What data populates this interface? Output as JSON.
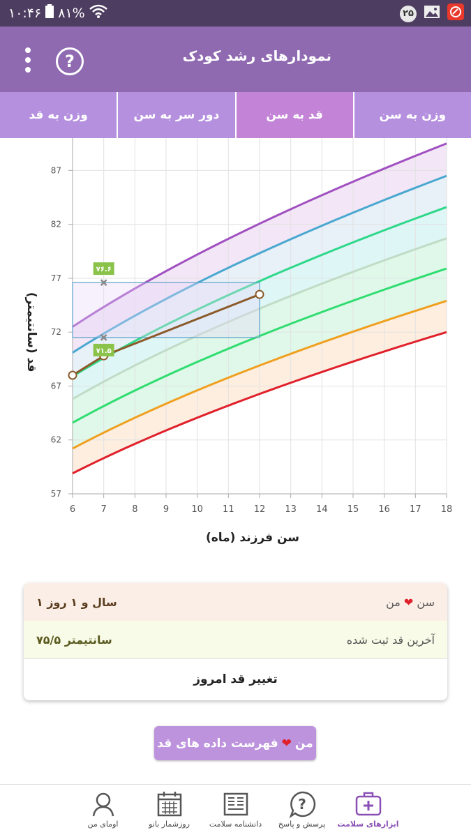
{
  "status_bar": {
    "time": "۱۰:۴۶",
    "battery": "۸۱%",
    "notif_count": "۲۵"
  },
  "app": {
    "title": "نمودارهای رشد کودک"
  },
  "tabs": [
    {
      "label": "وزن به سن",
      "active": false
    },
    {
      "label": "قد به سن",
      "active": true
    },
    {
      "label": "دور سر به سن",
      "active": false
    },
    {
      "label": "وزن به قد",
      "active": false
    }
  ],
  "chart_data": {
    "type": "line",
    "xlabel": "سن فرزند (ماه)",
    "ylabel": "قد (سانتیمتر)",
    "xlim": [
      6,
      18
    ],
    "ylim": [
      57,
      90
    ],
    "x_ticks": [
      "6",
      "7",
      "8",
      "9",
      "10",
      "11",
      "12",
      "13",
      "14",
      "15",
      "16",
      "17",
      "18"
    ],
    "y_ticks": [
      "57",
      "62",
      "67",
      "72",
      "77",
      "82",
      "87"
    ],
    "percentile_x": [
      6,
      18
    ],
    "percentiles": [
      {
        "color": "#e0202a",
        "fill": "#fde0e0",
        "values": [
          58.9,
          72.0
        ]
      },
      {
        "color": "#f0a020",
        "fill": "#fdeee0",
        "values": [
          61.2,
          74.9
        ]
      },
      {
        "color": "#30dd70",
        "fill": "#dff8ea",
        "values": [
          63.6,
          77.9
        ]
      },
      {
        "color": "#c0dcc6",
        "fill": "#dff8ea",
        "values": [
          65.8,
          80.7
        ]
      },
      {
        "color": "#2fd88a",
        "fill": "#dff6f6",
        "values": [
          67.9,
          83.6
        ]
      },
      {
        "color": "#4aa8d0",
        "fill": "#e8f0f8",
        "values": [
          70.1,
          86.5
        ]
      },
      {
        "color": "#a050c0",
        "fill": "#f3e6f6",
        "values": [
          72.5,
          89.5
        ]
      }
    ],
    "child_series": {
      "color": "#8b5a2b",
      "points": [
        {
          "x": 6,
          "y": 68.0
        },
        {
          "x": 7,
          "y": 69.8
        },
        {
          "x": 12,
          "y": 75.5
        }
      ]
    },
    "range_box": {
      "x0": 6,
      "x1": 12,
      "y0": 71.5,
      "y1": 76.6
    },
    "markers": [
      {
        "x": 7,
        "y": 76.6,
        "label": "۷۶.۶"
      },
      {
        "x": 7,
        "y": 71.5,
        "label": "۷۱.۵"
      }
    ]
  },
  "card": {
    "age_label": "سن",
    "age_label_suffix": "من",
    "age_value": "۱ سال و ۱ روز",
    "last_height_label": "آخرین قد ثبت شده",
    "last_height_value": "۷۵/۵ سانتیمتر",
    "change_label": "تغییر قد امروز"
  },
  "list_button": {
    "label_prefix": "فهرست داده های قد",
    "label_suffix": "من"
  },
  "bottom_nav": [
    {
      "label": "ابزارهای سلامت",
      "icon": "medical-kit-icon",
      "active": true
    },
    {
      "label": "پرسش و پاسخ",
      "icon": "question-bubble-icon",
      "active": false
    },
    {
      "label": "دانشنامه سلامت",
      "icon": "encyclopedia-icon",
      "active": false
    },
    {
      "label": "روزشمار بانو",
      "icon": "calendar-icon",
      "active": false
    },
    {
      "label": "اومای من",
      "icon": "profile-icon",
      "active": false
    }
  ]
}
